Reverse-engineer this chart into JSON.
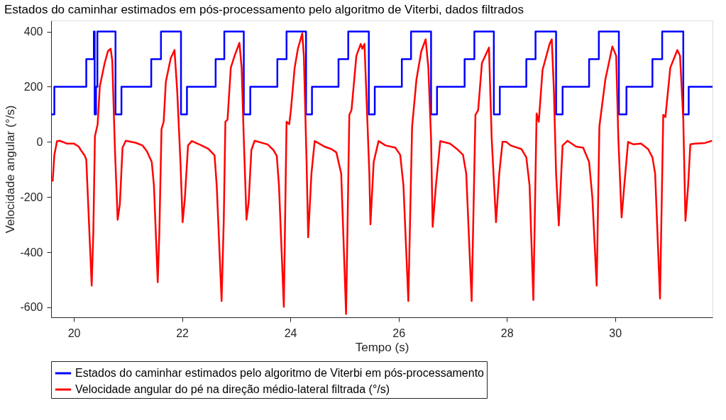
{
  "chart_data": {
    "type": "line",
    "title": "Estados do caminhar estimados em pós-processamento pelo algoritmo de Viterbi, dados filtrados",
    "xlabel": "Tempo (s)",
    "ylabel": "Velocidade angular (°/s)",
    "xlim": [
      19.58,
      31.8
    ],
    "ylim": [
      -636,
      440
    ],
    "xticks": [
      20,
      22,
      24,
      26,
      28,
      30
    ],
    "yticks": [
      -600,
      -400,
      -200,
      0,
      200,
      400
    ],
    "grid": false,
    "legend": "bottom",
    "line_style": "solid",
    "marker": "none",
    "series": [
      {
        "name": "Estados do caminhar estimados pelo algoritmo de Viterbi em pós-processamento",
        "color": "#0000ff",
        "type": "step",
        "x": [
          19.58,
          19.64,
          20.23,
          20.37,
          20.385,
          20.41,
          20.435,
          20.77,
          20.88,
          21.43,
          21.61,
          21.98,
          22.09,
          22.62,
          22.78,
          23.14,
          23.26,
          23.76,
          23.93,
          24.29,
          24.4,
          24.89,
          25.07,
          25.45,
          25.56,
          26.06,
          26.23,
          26.6,
          26.71,
          27.22,
          27.4,
          27.76,
          27.87,
          28.36,
          28.53,
          28.91,
          29.03,
          29.52,
          29.7,
          30.07,
          30.21,
          30.69,
          30.87,
          31.26,
          31.36,
          31.8
        ],
        "values": [
          100,
          200,
          300,
          400,
          100,
          200,
          400,
          100,
          200,
          300,
          400,
          100,
          200,
          300,
          400,
          100,
          200,
          300,
          400,
          100,
          200,
          300,
          400,
          100,
          200,
          300,
          400,
          100,
          200,
          300,
          400,
          100,
          200,
          300,
          400,
          100,
          200,
          300,
          400,
          100,
          200,
          300,
          400,
          100,
          200,
          200
        ]
      },
      {
        "name": "Velocidade angular do pé na direção médio-lateral filtrada (°/s)",
        "color": "#ff0000",
        "type": "line",
        "x": [
          19.58,
          19.61,
          19.64,
          19.69,
          19.74,
          19.87,
          20.0,
          20.09,
          20.13,
          20.2,
          20.23,
          20.26,
          20.33,
          20.36,
          20.39,
          20.44,
          20.48,
          20.57,
          20.63,
          20.68,
          20.71,
          20.76,
          20.81,
          20.85,
          20.9,
          20.96,
          21.14,
          21.27,
          21.35,
          21.44,
          21.48,
          21.55,
          21.58,
          21.62,
          21.66,
          21.7,
          21.79,
          21.86,
          21.91,
          21.97,
          22.01,
          22.05,
          22.11,
          22.18,
          22.36,
          22.49,
          22.6,
          22.64,
          22.73,
          22.77,
          22.8,
          22.84,
          22.9,
          22.97,
          23.06,
          23.1,
          23.14,
          23.19,
          23.23,
          23.28,
          23.34,
          23.58,
          23.69,
          23.75,
          23.79,
          23.88,
          23.93,
          23.98,
          24.01,
          24.08,
          24.14,
          24.22,
          24.25,
          24.3,
          24.33,
          24.39,
          24.45,
          24.63,
          24.76,
          24.85,
          24.94,
          25.03,
          25.09,
          25.13,
          25.22,
          25.3,
          25.33,
          25.37,
          25.46,
          25.48,
          25.54,
          25.63,
          25.76,
          25.94,
          26.03,
          26.09,
          26.18,
          26.25,
          26.33,
          26.42,
          26.5,
          26.55,
          26.6,
          26.63,
          26.69,
          26.77,
          26.95,
          27.08,
          27.19,
          27.25,
          27.35,
          27.42,
          27.47,
          27.54,
          27.67,
          27.72,
          27.8,
          27.86,
          27.92,
          27.99,
          28.07,
          28.27,
          28.36,
          28.42,
          28.49,
          28.55,
          28.59,
          28.66,
          28.79,
          28.83,
          28.87,
          28.91,
          28.96,
          29.03,
          29.12,
          29.28,
          29.41,
          29.52,
          29.58,
          29.66,
          29.71,
          29.82,
          29.95,
          30.02,
          30.06,
          30.12,
          30.17,
          30.24,
          30.34,
          30.48,
          30.61,
          30.69,
          30.74,
          30.83,
          30.89,
          30.93,
          31.02,
          31.15,
          31.2,
          31.26,
          31.3,
          31.35,
          31.39,
          31.48,
          31.66,
          31.79
        ],
        "values": [
          -141,
          -141,
          -47,
          3,
          4,
          -6,
          -6,
          -17,
          -30,
          -49,
          -64,
          -201,
          -521,
          -329,
          21,
          64,
          201,
          286,
          329,
          338,
          295,
          -30,
          -282,
          -226,
          -21,
          4,
          -3,
          -13,
          -34,
          -73,
          -158,
          -509,
          -329,
          47,
          73,
          218,
          303,
          333,
          184,
          -73,
          -291,
          -209,
          -13,
          3,
          -13,
          -26,
          -49,
          -158,
          -577,
          -286,
          73,
          81,
          269,
          312,
          359,
          269,
          13,
          -282,
          -218,
          -30,
          4,
          -9,
          -30,
          -51,
          -158,
          -598,
          73,
          64,
          115,
          269,
          338,
          393,
          312,
          -73,
          -346,
          -115,
          3,
          -17,
          -26,
          -38,
          -115,
          -624,
          98,
          115,
          312,
          355,
          338,
          355,
          -115,
          -299,
          -73,
          3,
          -13,
          -21,
          -47,
          -158,
          -577,
          56,
          226,
          329,
          372,
          269,
          13,
          -308,
          -158,
          3,
          -6,
          -26,
          -47,
          -115,
          -577,
          98,
          115,
          286,
          342,
          13,
          -291,
          -115,
          0,
          0,
          -13,
          -26,
          -56,
          -158,
          -573,
          103,
          73,
          261,
          355,
          372,
          184,
          -115,
          -303,
          -13,
          4,
          -17,
          -21,
          -73,
          -201,
          -521,
          56,
          226,
          346,
          312,
          13,
          -274,
          -158,
          0,
          -9,
          -6,
          -26,
          -56,
          -115,
          -568,
          98,
          90,
          269,
          333,
          312,
          81,
          -286,
          -158,
          -9,
          -6,
          -4,
          4
        ]
      }
    ]
  }
}
